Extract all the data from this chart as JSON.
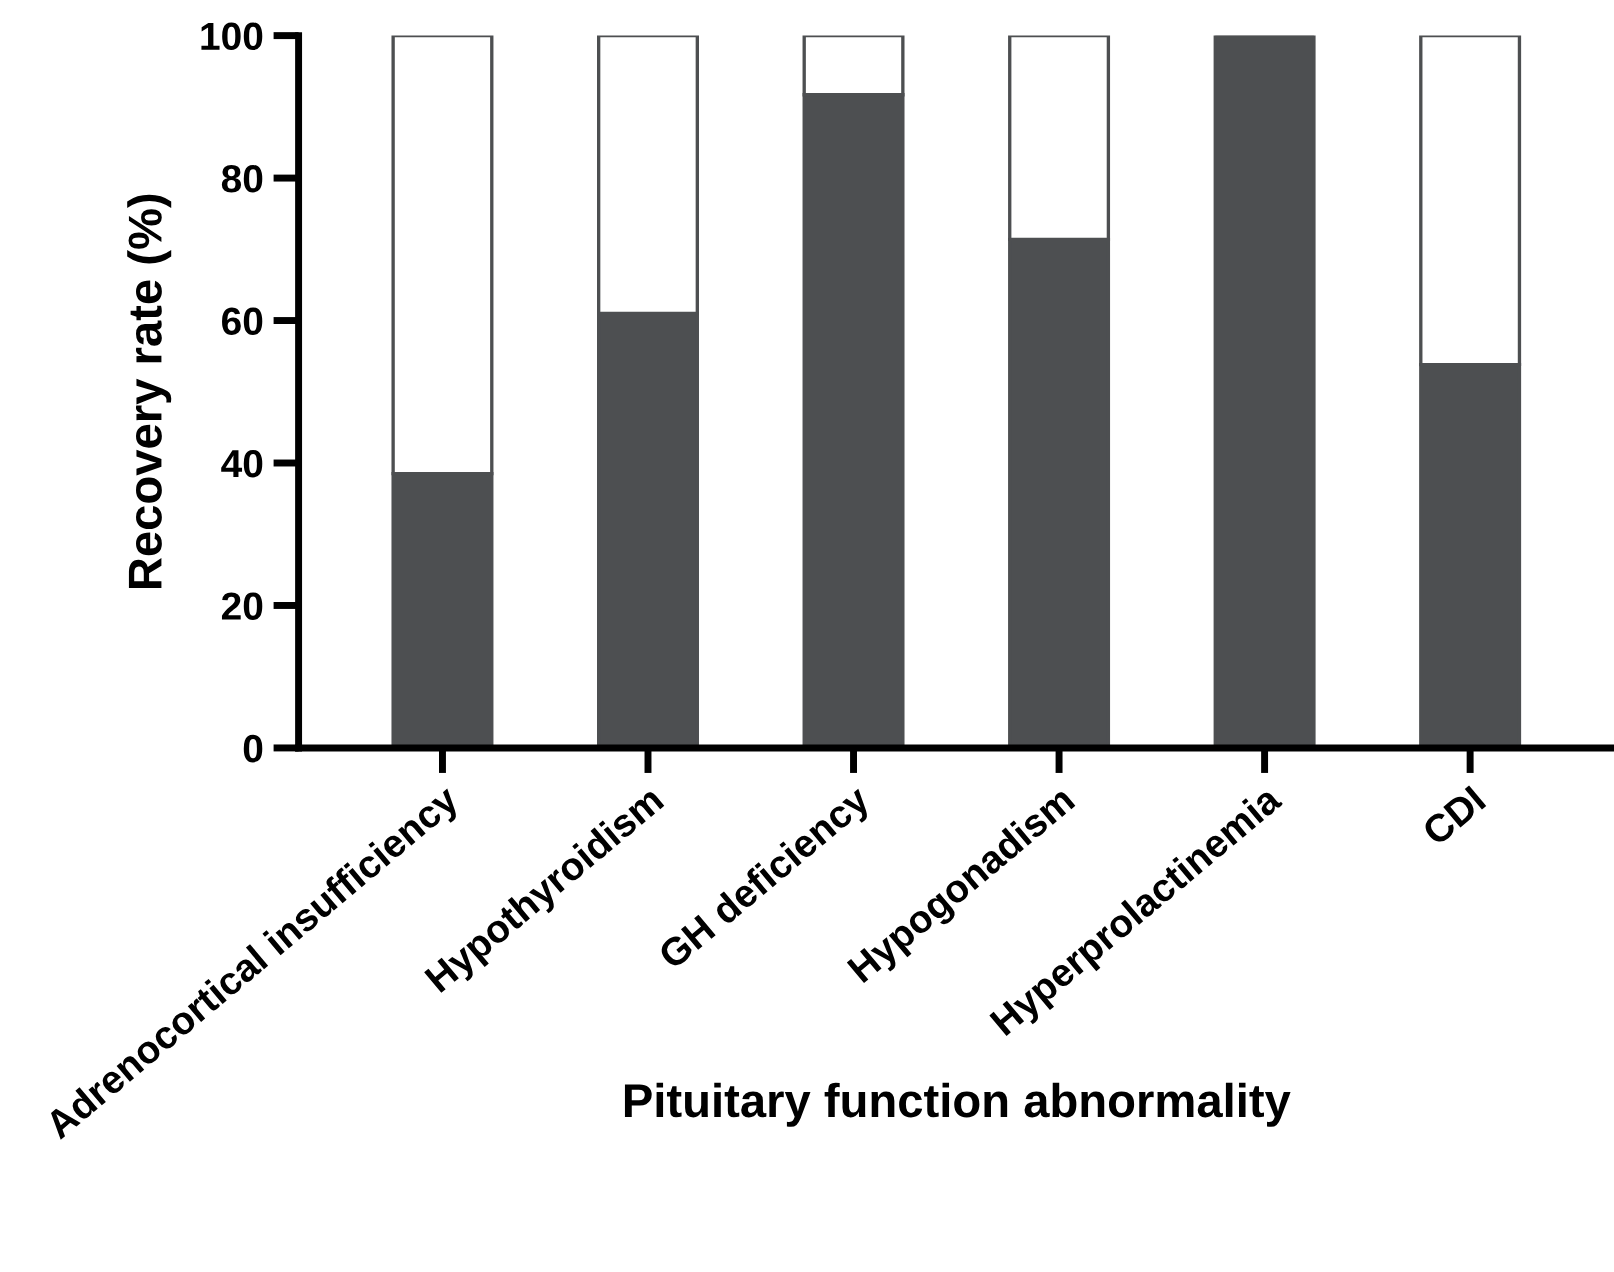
{
  "chart_data": {
    "type": "bar",
    "stacked": true,
    "xlabel": "Pituitary function abnormality",
    "ylabel": "Recovery rate (%)",
    "categories": [
      "Adrenocortical insufficiency",
      "Hypothyroidism",
      "GH deficiency",
      "Hypogonadism",
      "Hyperprolactinemia",
      "CDI"
    ],
    "series": [
      {
        "color": "#4d4f51",
        "values": [
          38.5,
          61,
          91.7,
          71.4,
          100,
          53.8
        ]
      },
      {
        "color": "#ffffff",
        "values": [
          61.5,
          39,
          8.3,
          28.6,
          0,
          46.2
        ]
      }
    ],
    "ylim": [
      0,
      100
    ],
    "yticks": [
      0,
      20,
      40,
      60,
      80,
      100
    ]
  }
}
